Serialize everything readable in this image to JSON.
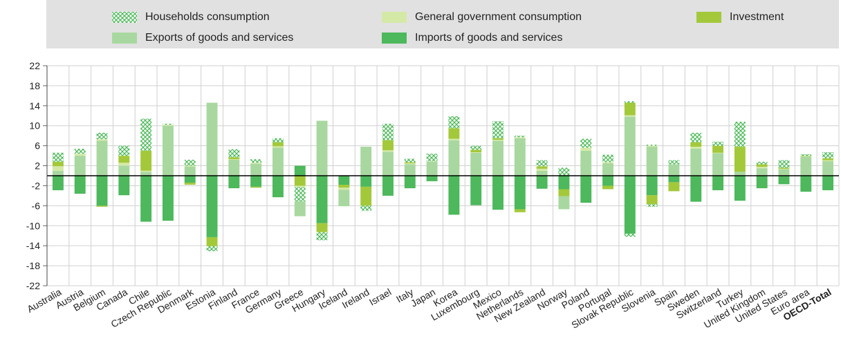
{
  "legend": {
    "households": "Households consumption",
    "government": "General government consumption",
    "investment": "Investment",
    "exports": "Exports of goods and services",
    "imports": "Imports of goods and services"
  },
  "colors": {
    "households": "#4fba5b",
    "government": "#d4e9a6",
    "investment": "#a3c93a",
    "exports": "#a8d8a0",
    "imports": "#4db85c",
    "zero_line": "#000000",
    "grid": "#d0d0d0",
    "legend_bg": "#e1e1e1"
  },
  "chart_data": {
    "type": "bar",
    "stacked": true,
    "ylim": [
      -22,
      22
    ],
    "yticks": [
      22,
      18,
      14,
      10,
      6,
      2,
      -2,
      -6,
      -10,
      -14,
      -18,
      -22
    ],
    "xlabel": "",
    "ylabel": "",
    "grid": true,
    "legend_position": "top",
    "categories": [
      "Australia",
      "Austria",
      "Belgium",
      "Canada",
      "Chile",
      "Czech Republic",
      "Denmark",
      "Estonia",
      "Finland",
      "France",
      "Germany",
      "Greece",
      "Hungary",
      "Iceland",
      "Ireland",
      "Israel",
      "Italy",
      "Japan",
      "Korea",
      "Luxembourg",
      "Mexico",
      "Netherlands",
      "New Zealand",
      "Norway",
      "Poland",
      "Portugal",
      "Slovak Republic",
      "Slovenia",
      "Spain",
      "Sweden",
      "Switzerland",
      "Turkey",
      "United Kingdom",
      "United States",
      "Euro area",
      "OECD-Total"
    ],
    "bold_categories": [
      "OECD-Total"
    ],
    "series": [
      {
        "key": "exports",
        "name": "Exports of goods and services",
        "values": [
          1.0,
          4.0,
          7.0,
          2.0,
          0.8,
          10.0,
          1.8,
          14.6,
          3.2,
          2.4,
          5.6,
          -3.0,
          11.0,
          -3.3,
          5.8,
          4.8,
          2.3,
          2.8,
          7.1,
          4.6,
          7.0,
          7.5,
          1.0,
          -2.6,
          5.0,
          2.5,
          11.8,
          5.8,
          2.3,
          5.4,
          4.5,
          0.8,
          1.5,
          1.3,
          3.8,
          2.9
        ]
      },
      {
        "key": "government",
        "name": "General government consumption",
        "values": [
          0.9,
          0.4,
          0.3,
          0.6,
          0.2,
          0.2,
          0.2,
          0,
          0.1,
          0.2,
          0.3,
          0,
          0,
          0,
          0,
          0.3,
          0.2,
          0.1,
          0.3,
          0.1,
          0.2,
          0.2,
          0.4,
          0,
          0.6,
          0.2,
          0.3,
          0.2,
          0,
          0.4,
          0.1,
          0,
          0.3,
          0.1,
          0.1,
          0.2
        ],
        "neg": [
          0,
          0,
          0,
          0,
          0,
          0,
          0,
          0,
          0,
          0,
          0,
          -0.3,
          0,
          -0.4,
          0,
          0,
          0,
          0,
          0,
          0,
          0,
          0,
          0,
          0,
          0,
          0,
          0,
          0,
          0,
          0,
          0,
          0,
          0,
          0,
          0,
          0
        ]
      },
      {
        "key": "investment",
        "name": "Investment",
        "values": [
          0.9,
          0,
          0,
          1.4,
          4.0,
          0,
          0,
          0,
          0.4,
          0,
          0.8,
          0,
          0,
          0,
          0,
          2.0,
          0.2,
          0,
          2.1,
          0.5,
          0.3,
          0,
          0.5,
          0,
          0,
          0,
          2.5,
          0,
          0,
          0.9,
          1.4,
          5.0,
          0.5,
          0.2,
          0.1,
          0.4
        ],
        "neg": [
          0,
          0,
          -0.2,
          0,
          0,
          0,
          -0.4,
          -1.8,
          0,
          -0.2,
          0,
          -2.0,
          -1.8,
          -0.6,
          -3.8,
          0,
          0,
          0,
          0,
          0,
          0,
          -0.6,
          0,
          -1.4,
          0,
          -0.7,
          0,
          -1.8,
          -1.8,
          0,
          0,
          0,
          0,
          0,
          0,
          0
        ]
      },
      {
        "key": "households",
        "name": "Households consumption",
        "values": [
          1.8,
          1.0,
          1.3,
          2.0,
          6.4,
          0.2,
          1.2,
          0,
          1.6,
          0.7,
          0.8,
          0,
          0,
          0,
          0,
          3.3,
          0.7,
          1.5,
          2.4,
          0.8,
          3.4,
          0.3,
          1.2,
          1.6,
          1.8,
          1.5,
          0.3,
          0.2,
          0.8,
          1.9,
          0.8,
          5.0,
          0.5,
          1.5,
          0.3,
          1.2
        ],
        "neg": [
          0,
          0,
          0,
          0,
          0,
          0,
          0,
          -1.0,
          0,
          0,
          0,
          -2.8,
          -1.6,
          0,
          -1.0,
          0,
          0,
          0,
          0,
          0,
          0,
          0,
          0,
          0,
          0,
          0,
          -0.6,
          -0.5,
          0,
          0,
          0,
          0,
          0,
          0,
          0,
          0
        ]
      },
      {
        "key": "imports",
        "name": "Imports of goods and services",
        "values": [
          0,
          0,
          0,
          0,
          0,
          0,
          0,
          0,
          0,
          0,
          0,
          2.0,
          0,
          0,
          0,
          0,
          0,
          0,
          0,
          0,
          0,
          0,
          0,
          0,
          0,
          0,
          0,
          0,
          0,
          0,
          0,
          0,
          0,
          0,
          0,
          0
        ],
        "neg": [
          -2.9,
          -3.6,
          -6.0,
          -3.9,
          -9.2,
          -9.0,
          -1.4,
          -12.3,
          -2.5,
          -2.2,
          -4.3,
          0,
          -9.5,
          -1.8,
          -2.2,
          -4.0,
          -2.5,
          -1.1,
          -7.8,
          -5.9,
          -6.8,
          -6.7,
          -2.6,
          -2.7,
          -5.4,
          -2.0,
          -11.6,
          -3.9,
          -1.3,
          -5.2,
          -2.9,
          -5.0,
          -2.5,
          -1.7,
          -3.2,
          -2.9
        ]
      }
    ]
  }
}
